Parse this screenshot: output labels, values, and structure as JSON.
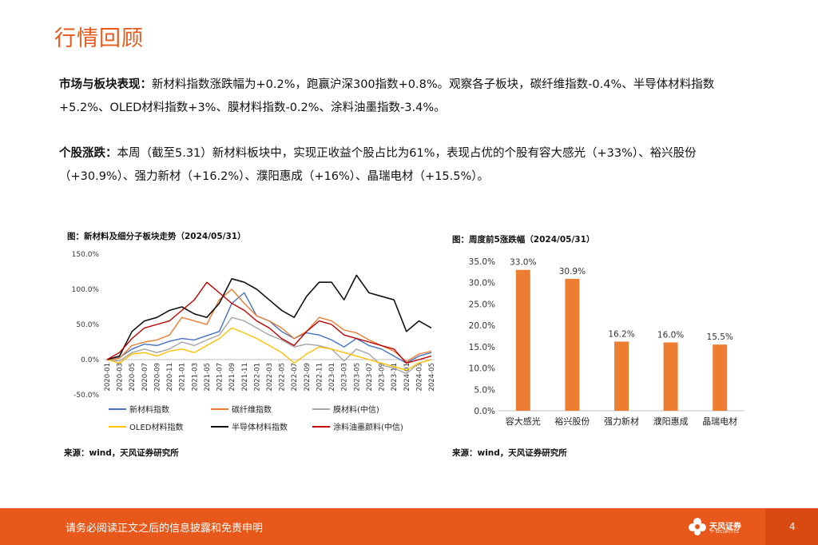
{
  "page": {
    "title": "行情回顾",
    "para1_label": "市场与板块表现：",
    "para1_text": "新材料指数涨跌幅为+0.2%，跑赢沪深300指数+0.8%。观察各子板块，碳纤维指数-0.4%、半导体材料指数+5.2%、OLED材料指数+3%、膜材料指数-0.2%、涂料油墨指数-3.4%。",
    "para2_label": "个股涨跌：",
    "para2_text": "本周（截至5.31）新材料板块中，实现正收益个股占比为61%，表现占优的个股有容大感光（+33%）、裕兴股份（+30.9%）、强力新材（+16.2%）、濮阳惠成（+16%）、晶瑞电材（+15.5%）。",
    "footer_disclaimer": "请务必阅读正文之后的信息披露和免责申明",
    "page_number": "4",
    "logo_name": "天风证券",
    "logo_sub": "TF SECURITIES"
  },
  "left_chart": {
    "caption": "图：新材料及细分子板块走势（2024/05/31）",
    "source": "来源：wind，天风证券研究所"
  },
  "right_chart": {
    "caption": "图：周度前5涨跌幅（2024/05/31）",
    "source": "来源：wind，天风证券研究所"
  },
  "chart_data": [
    {
      "type": "line",
      "title": "",
      "x_tick_labels": [
        "2020-01",
        "2020-03",
        "2020-05",
        "2020-07",
        "2020-09",
        "2020-11",
        "2021-01",
        "2021-03",
        "2021-05",
        "2021-07",
        "2021-09",
        "2021-11",
        "2022-01",
        "2022-03",
        "2022-05",
        "2022-07",
        "2022-09",
        "2022-11",
        "2023-01",
        "2023-03",
        "2023-05",
        "2023-07",
        "2023-09",
        "2023-11",
        "2024-01",
        "2024-03",
        "2024-05"
      ],
      "y_tick_labels": [
        "150.0%",
        "100.0%",
        "50.0%",
        "0.0%",
        "-50.0%"
      ],
      "ylim": [
        -50,
        150
      ],
      "legend_position": "bottom",
      "series": [
        {
          "name": "新材料指数",
          "color": "#4472c4",
          "values": [
            0,
            3,
            15,
            22,
            20,
            26,
            30,
            28,
            34,
            40,
            80,
            95,
            62,
            55,
            40,
            30,
            38,
            35,
            28,
            18,
            30,
            20,
            15,
            5,
            -5,
            5,
            10
          ]
        },
        {
          "name": "碳纤维指数",
          "color": "#ed7d31",
          "values": [
            0,
            2,
            20,
            25,
            28,
            35,
            60,
            55,
            50,
            85,
            100,
            80,
            62,
            55,
            45,
            30,
            40,
            60,
            55,
            42,
            38,
            28,
            20,
            12,
            -3,
            8,
            12
          ]
        },
        {
          "name": "膜材料(中信)",
          "color": "#a5a5a5",
          "values": [
            0,
            -2,
            10,
            15,
            10,
            15,
            25,
            20,
            28,
            35,
            60,
            55,
            45,
            35,
            28,
            18,
            22,
            20,
            15,
            -2,
            15,
            8,
            -8,
            -12,
            -20,
            -5,
            0
          ]
        },
        {
          "name": "OLED材料指数",
          "color": "#ffc000",
          "values": [
            0,
            -5,
            8,
            10,
            5,
            12,
            15,
            10,
            20,
            30,
            45,
            38,
            30,
            20,
            10,
            -5,
            8,
            18,
            15,
            10,
            5,
            0,
            -5,
            -10,
            -15,
            -5,
            0
          ]
        },
        {
          "name": "半导体材料指数",
          "color": "#111111",
          "values": [
            0,
            5,
            40,
            55,
            60,
            70,
            75,
            65,
            60,
            80,
            115,
            110,
            100,
            85,
            70,
            60,
            90,
            110,
            110,
            85,
            120,
            95,
            90,
            85,
            40,
            55,
            45
          ]
        },
        {
          "name": "涂料油墨颜料(中信)",
          "color": "#c00000",
          "values": [
            0,
            10,
            30,
            45,
            50,
            55,
            70,
            85,
            110,
            95,
            80,
            70,
            55,
            45,
            30,
            20,
            40,
            55,
            50,
            35,
            30,
            25,
            20,
            15,
            -5,
            0,
            5
          ]
        }
      ]
    },
    {
      "type": "bar",
      "title": "",
      "categories": [
        "容大感光",
        "裕兴股份",
        "强力新材",
        "濮阳惠成",
        "晶瑞电材"
      ],
      "values": [
        33.0,
        30.9,
        16.2,
        16.0,
        15.5
      ],
      "value_labels": [
        "33.0%",
        "30.9%",
        "16.2%",
        "16.0%",
        "15.5%"
      ],
      "y_tick_labels": [
        "35.0%",
        "30.0%",
        "25.0%",
        "20.0%",
        "15.0%",
        "10.0%",
        "5.0%",
        "0.0%"
      ],
      "ylim": [
        0,
        35
      ],
      "color": "#ed7d31"
    }
  ]
}
